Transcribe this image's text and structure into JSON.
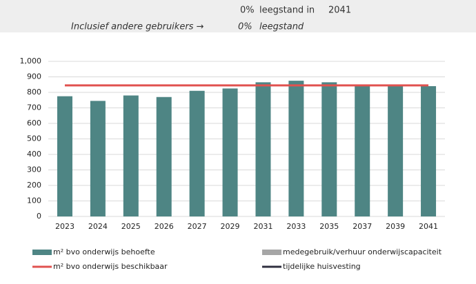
{
  "header": {
    "rows": [
      [
        "0%",
        "leegstand in",
        "2041"
      ],
      [
        "Inclusief andere gebruikers →",
        "0%",
        "leegstand"
      ]
    ]
  },
  "chart_data": {
    "type": "bar",
    "categories": [
      "2023",
      "2024",
      "2025",
      "2026",
      "2027",
      "2029",
      "2031",
      "2033",
      "2035",
      "2037",
      "2039",
      "2041"
    ],
    "series": [
      {
        "name": "m² bvo onderwijs behoefte",
        "type": "bar",
        "color": "#4e8584",
        "values": [
          775,
          745,
          780,
          770,
          810,
          825,
          865,
          875,
          865,
          850,
          850,
          840
        ]
      },
      {
        "name": "medegebruik/verhuur onderwijscapaciteit",
        "type": "bar",
        "color": "#a6a6a6"
      },
      {
        "name": "m² bvo onderwijs beschikbaar",
        "type": "line",
        "color": "#e0524f",
        "values": [
          845,
          845,
          845,
          845,
          845,
          845,
          845,
          845,
          845,
          845,
          845,
          845
        ]
      },
      {
        "name": "tijdelijke huisvesting",
        "type": "line",
        "color": "#2f2f3f"
      }
    ],
    "ylim": [
      0,
      1000
    ],
    "yticks": [
      0,
      100,
      200,
      300,
      400,
      500,
      600,
      700,
      800,
      900,
      {
        "value": 1000,
        "label": "1,000"
      }
    ],
    "grid": true
  }
}
